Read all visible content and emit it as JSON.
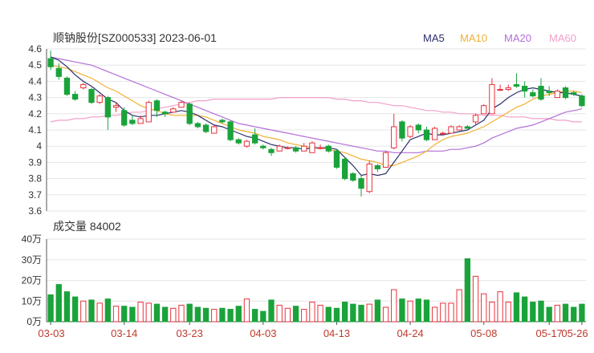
{
  "header": {
    "title": "顺钠股份[SZ000533] 2023-06-01",
    "ma_legend": [
      {
        "label": "MA5",
        "color": "#2a2f6e"
      },
      {
        "label": "MA10",
        "color": "#f2b134"
      },
      {
        "label": "MA20",
        "color": "#b36fd8"
      },
      {
        "label": "MA60",
        "color": "#f0a0c8"
      }
    ]
  },
  "volume_panel": {
    "title": "成交量 84002"
  },
  "colors": {
    "up": "#e8323c",
    "down": "#1aa33a",
    "grid": "#e6e6e6",
    "axis": "#555555"
  },
  "chart_data": [
    {
      "type": "candlestick",
      "ylim": [
        3.6,
        4.6
      ],
      "yticks": [
        "4.6",
        "4.5",
        "4.4",
        "4.3",
        "4.2",
        "4.1",
        "4",
        "3.9",
        "3.8",
        "3.7",
        "3.6"
      ],
      "xticks": [
        "03-03",
        "03-14",
        "03-23",
        "04-03",
        "04-13",
        "04-24",
        "05-08",
        "05-17",
        "05-26"
      ],
      "ohlc": [
        [
          4.54,
          4.59,
          4.47,
          4.49
        ],
        [
          4.48,
          4.51,
          4.41,
          4.43
        ],
        [
          4.42,
          4.43,
          4.31,
          4.32
        ],
        [
          4.32,
          4.34,
          4.28,
          4.29
        ],
        [
          4.36,
          4.39,
          4.35,
          4.38
        ],
        [
          4.35,
          4.36,
          4.26,
          4.27
        ],
        [
          4.27,
          4.32,
          4.26,
          4.31
        ],
        [
          4.3,
          4.31,
          4.1,
          4.18
        ],
        [
          4.24,
          4.27,
          4.21,
          4.25
        ],
        [
          4.22,
          4.24,
          4.12,
          4.13
        ],
        [
          4.16,
          4.19,
          4.13,
          4.14
        ],
        [
          4.14,
          4.19,
          4.14,
          4.17
        ],
        [
          4.15,
          4.28,
          4.15,
          4.27
        ],
        [
          4.28,
          4.29,
          4.18,
          4.22
        ],
        [
          4.21,
          4.22,
          4.18,
          4.2
        ],
        [
          4.21,
          4.24,
          4.21,
          4.23
        ],
        [
          4.24,
          4.28,
          4.24,
          4.27
        ],
        [
          4.26,
          4.27,
          4.13,
          4.14
        ],
        [
          4.14,
          4.15,
          4.11,
          4.12
        ],
        [
          4.13,
          4.14,
          4.08,
          4.09
        ],
        [
          4.08,
          4.13,
          4.08,
          4.12
        ],
        [
          4.16,
          4.17,
          4.14,
          4.15
        ],
        [
          4.15,
          4.16,
          4.03,
          4.04
        ],
        [
          4.04,
          4.05,
          4.01,
          4.02
        ],
        [
          4.0,
          4.04,
          3.99,
          4.03
        ],
        [
          4.07,
          4.11,
          4.01,
          4.02
        ],
        [
          4.0,
          4.01,
          3.98,
          3.99
        ],
        [
          3.98,
          3.99,
          3.94,
          3.96
        ],
        [
          3.97,
          4.01,
          3.97,
          4.0
        ],
        [
          3.99,
          4.0,
          3.98,
          3.99
        ],
        [
          3.99,
          4.0,
          3.96,
          3.97
        ],
        [
          3.97,
          4.02,
          3.97,
          4.0
        ],
        [
          3.96,
          4.03,
          3.96,
          4.02
        ],
        [
          3.99,
          4.01,
          3.98,
          3.99
        ],
        [
          4.0,
          4.01,
          3.96,
          3.97
        ],
        [
          3.97,
          3.98,
          3.86,
          3.87
        ],
        [
          3.92,
          3.93,
          3.79,
          3.8
        ],
        [
          3.83,
          3.84,
          3.78,
          3.79
        ],
        [
          3.8,
          3.82,
          3.69,
          3.74
        ],
        [
          3.72,
          3.91,
          3.71,
          3.89
        ],
        [
          3.88,
          3.89,
          3.84,
          3.86
        ],
        [
          3.87,
          3.97,
          3.87,
          3.96
        ],
        [
          3.99,
          4.2,
          3.98,
          4.12
        ],
        [
          4.15,
          4.16,
          4.03,
          4.05
        ],
        [
          4.06,
          4.13,
          4.05,
          4.12
        ],
        [
          4.13,
          4.14,
          4.08,
          4.1
        ],
        [
          4.1,
          4.12,
          4.03,
          4.04
        ],
        [
          4.04,
          4.12,
          4.04,
          4.11
        ],
        [
          4.08,
          4.09,
          4.07,
          4.08
        ],
        [
          4.08,
          4.13,
          4.08,
          4.12
        ],
        [
          4.1,
          4.13,
          4.1,
          4.12
        ],
        [
          4.12,
          4.13,
          4.11,
          4.11
        ],
        [
          4.15,
          4.2,
          4.13,
          4.19
        ],
        [
          4.2,
          4.26,
          4.2,
          4.25
        ],
        [
          4.2,
          4.42,
          4.2,
          4.38
        ],
        [
          4.35,
          4.38,
          4.34,
          4.35
        ],
        [
          4.35,
          4.38,
          4.34,
          4.36
        ],
        [
          4.38,
          4.45,
          4.36,
          4.37
        ],
        [
          4.37,
          4.4,
          4.3,
          4.34
        ],
        [
          4.33,
          4.35,
          4.3,
          4.31
        ],
        [
          4.37,
          4.42,
          4.28,
          4.29
        ],
        [
          4.34,
          4.37,
          4.31,
          4.33
        ],
        [
          4.3,
          4.35,
          4.3,
          4.34
        ],
        [
          4.36,
          4.37,
          4.29,
          4.3
        ],
        [
          4.33,
          4.34,
          4.31,
          4.32
        ],
        [
          4.31,
          4.32,
          4.24,
          4.25
        ]
      ],
      "ma5": [
        4.55,
        4.53,
        4.49,
        4.44,
        4.4,
        4.37,
        4.33,
        4.29,
        4.27,
        4.22,
        4.19,
        4.18,
        4.19,
        4.19,
        4.2,
        4.21,
        4.22,
        4.21,
        4.19,
        4.16,
        4.13,
        4.12,
        4.1,
        4.08,
        4.06,
        4.05,
        4.03,
        4.01,
        4.0,
        3.99,
        3.99,
        3.98,
        3.99,
        3.99,
        3.99,
        3.98,
        3.93,
        3.88,
        3.82,
        3.83,
        3.82,
        3.83,
        3.9,
        3.97,
        4.04,
        4.06,
        4.08,
        4.07,
        4.07,
        4.08,
        4.09,
        4.1,
        4.13,
        4.16,
        4.23,
        4.26,
        4.3,
        4.33,
        4.35,
        4.36,
        4.35,
        4.34,
        4.33,
        4.33,
        4.32,
        4.31
      ],
      "ma10": [
        4.5,
        4.49,
        4.48,
        4.46,
        4.44,
        4.42,
        4.39,
        4.36,
        4.34,
        4.31,
        4.28,
        4.25,
        4.23,
        4.22,
        4.2,
        4.19,
        4.19,
        4.19,
        4.19,
        4.18,
        4.16,
        4.14,
        4.12,
        4.1,
        4.09,
        4.08,
        4.06,
        4.05,
        4.04,
        4.02,
        4.01,
        4.0,
        3.99,
        3.99,
        3.98,
        3.97,
        3.96,
        3.94,
        3.92,
        3.91,
        3.9,
        3.88,
        3.88,
        3.9,
        3.92,
        3.94,
        3.97,
        4.01,
        4.04,
        4.06,
        4.07,
        4.08,
        4.1,
        4.12,
        4.15,
        4.18,
        4.21,
        4.24,
        4.26,
        4.29,
        4.31,
        4.32,
        4.33,
        4.34,
        4.34,
        4.33
      ],
      "ma20": [
        4.55,
        4.54,
        4.53,
        4.52,
        4.51,
        4.5,
        4.48,
        4.46,
        4.44,
        4.42,
        4.4,
        4.38,
        4.36,
        4.34,
        4.32,
        4.3,
        4.28,
        4.26,
        4.24,
        4.22,
        4.2,
        4.18,
        4.16,
        4.14,
        4.13,
        4.12,
        4.11,
        4.1,
        4.09,
        4.08,
        4.07,
        4.06,
        4.05,
        4.04,
        4.03,
        4.02,
        4.01,
        4.0,
        3.99,
        3.98,
        3.97,
        3.97,
        3.96,
        3.96,
        3.96,
        3.96,
        3.97,
        3.97,
        3.97,
        3.98,
        3.98,
        3.99,
        4.0,
        4.02,
        4.05,
        4.07,
        4.09,
        4.11,
        4.12,
        4.13,
        4.15,
        4.17,
        4.19,
        4.21,
        4.22,
        4.23
      ],
      "ma60": [
        4.15,
        4.16,
        4.16,
        4.17,
        4.17,
        4.18,
        4.18,
        4.19,
        4.19,
        4.2,
        4.21,
        4.21,
        4.22,
        4.23,
        4.24,
        4.25,
        4.26,
        4.27,
        4.28,
        4.28,
        4.29,
        4.29,
        4.29,
        4.29,
        4.29,
        4.29,
        4.29,
        4.29,
        4.3,
        4.3,
        4.3,
        4.3,
        4.3,
        4.3,
        4.3,
        4.29,
        4.29,
        4.28,
        4.28,
        4.27,
        4.27,
        4.26,
        4.25,
        4.25,
        4.24,
        4.23,
        4.22,
        4.22,
        4.21,
        4.21,
        4.2,
        4.2,
        4.2,
        4.19,
        4.19,
        4.19,
        4.18,
        4.18,
        4.18,
        4.17,
        4.17,
        4.17,
        4.16,
        4.16,
        4.15,
        4.15
      ]
    },
    {
      "type": "bar",
      "ylim": [
        0,
        40
      ],
      "yticks": [
        "40万",
        "30万",
        "20万",
        "10万",
        "0万"
      ],
      "unit": "万",
      "values": [
        13,
        18,
        14.5,
        12,
        10,
        10.5,
        9,
        11,
        7.5,
        7.5,
        7,
        9.5,
        9,
        8.5,
        7,
        6.5,
        8,
        8.5,
        7,
        6.5,
        6,
        6.5,
        6,
        7.5,
        11,
        6,
        5,
        10.5,
        8,
        6.5,
        7.5,
        6,
        9.5,
        8,
        7,
        6.5,
        9.5,
        8.5,
        8,
        8.5,
        10.5,
        7,
        15.5,
        11,
        10,
        11,
        10.5,
        7,
        9,
        9,
        15.5,
        30.5,
        22,
        13.5,
        9.5,
        14.5,
        9.5,
        14,
        12,
        9.5,
        10,
        7,
        8,
        8.5,
        7,
        8.5
      ]
    }
  ]
}
